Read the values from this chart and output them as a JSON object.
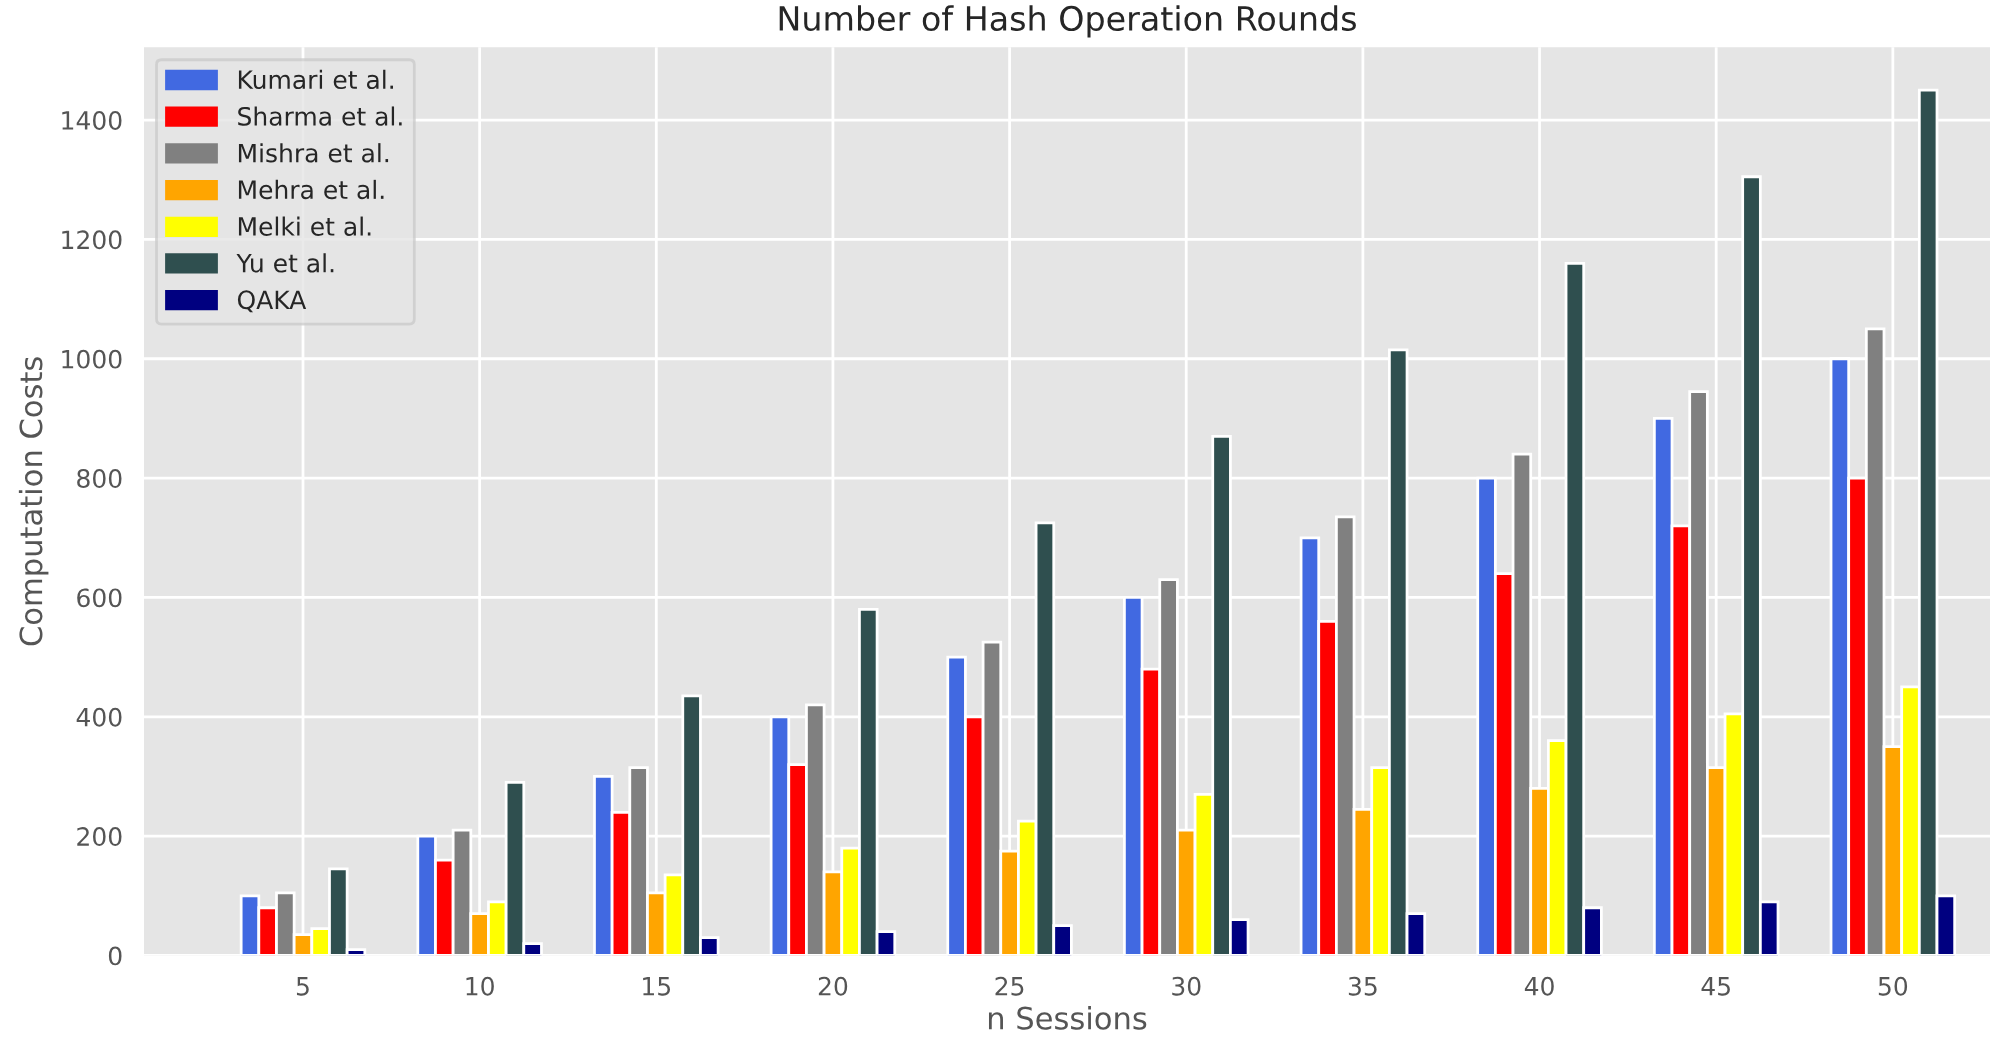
{
  "chart_data": {
    "type": "bar",
    "title": "Number of Hash Operation Rounds",
    "xlabel": "n Sessions",
    "ylabel": "Computation Costs",
    "categories": [
      "5",
      "10",
      "15",
      "20",
      "25",
      "30",
      "35",
      "40",
      "45",
      "50"
    ],
    "series": [
      {
        "name": "Kumari et al.",
        "color": "#4169e1",
        "values": [
          100,
          200,
          300,
          400,
          500,
          600,
          700,
          800,
          900,
          1000
        ]
      },
      {
        "name": "Sharma et al.",
        "color": "#ff0000",
        "values": [
          80,
          160,
          240,
          320,
          400,
          480,
          560,
          640,
          720,
          800
        ]
      },
      {
        "name": "Mishra et al.",
        "color": "#808080",
        "values": [
          105,
          210,
          315,
          420,
          525,
          630,
          735,
          840,
          945,
          1050
        ]
      },
      {
        "name": "Mehra et al.",
        "color": "#ffa500",
        "values": [
          35,
          70,
          105,
          140,
          175,
          210,
          245,
          280,
          315,
          350
        ]
      },
      {
        "name": "Melki et al.",
        "color": "#ffff00",
        "values": [
          45,
          90,
          135,
          180,
          225,
          270,
          315,
          360,
          405,
          450
        ]
      },
      {
        "name": "Yu et al.",
        "color": "#2f4f4f",
        "values": [
          145,
          290,
          435,
          580,
          725,
          870,
          1015,
          1160,
          1305,
          1450
        ]
      },
      {
        "name": "QAKA",
        "color": "#000080",
        "values": [
          10,
          20,
          30,
          40,
          50,
          60,
          70,
          80,
          90,
          100
        ]
      }
    ],
    "ylim": [
      0,
      1522
    ],
    "yticks": [
      0,
      200,
      400,
      600,
      800,
      1000,
      1200,
      1400
    ],
    "grid": true,
    "legend": "top left"
  }
}
